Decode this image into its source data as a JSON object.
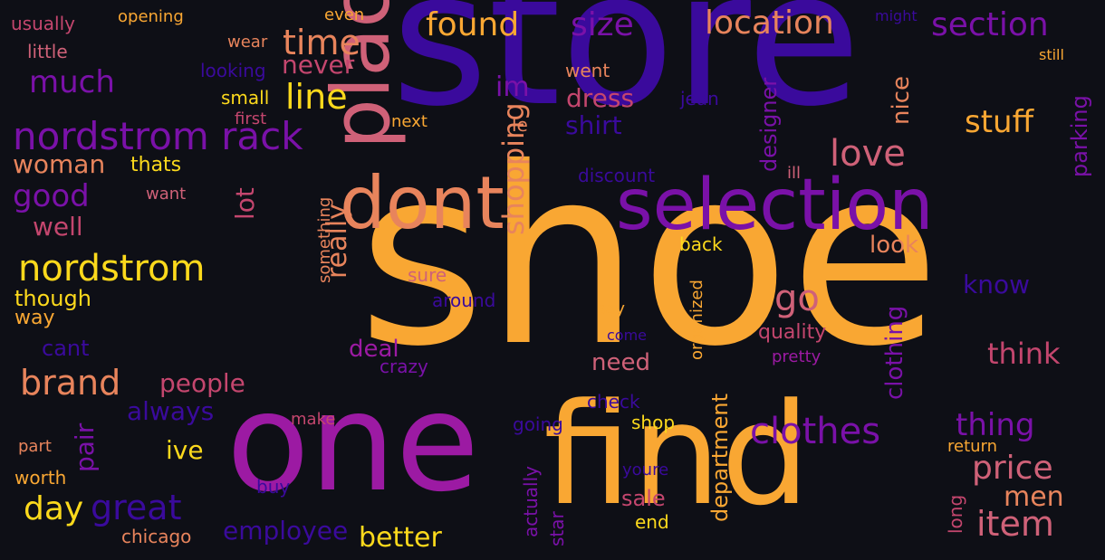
{
  "background": "#0e0f16",
  "palette": [
    "#fcd91c",
    "#f9a733",
    "#e8845c",
    "#cf6178",
    "#c4466e",
    "#9c1aa3",
    "#7a11a8",
    "#3a0a9c"
  ],
  "words": [
    {
      "text": "store",
      "color": "#3a0a9c"
    },
    {
      "text": "shoe",
      "color": "#f9a733"
    },
    {
      "text": "rack",
      "color": "#fcd91c"
    },
    {
      "text": "one",
      "color": "#9c1aa3"
    },
    {
      "text": "find",
      "color": "#f9a733"
    },
    {
      "text": "selection",
      "color": "#7a11a8"
    },
    {
      "text": "dont",
      "color": "#e8845c"
    },
    {
      "text": "place",
      "color": "#cf6178"
    },
    {
      "text": "nordstrom rack",
      "color": "#7a11a8"
    },
    {
      "text": "nordstrom",
      "color": "#fcd91c"
    },
    {
      "text": "clothes",
      "color": "#7a11a8"
    },
    {
      "text": "location",
      "color": "#e8845c"
    },
    {
      "text": "section",
      "color": "#7a11a8"
    },
    {
      "text": "found",
      "color": "#f9a733"
    },
    {
      "text": "size",
      "color": "#7a11a8"
    },
    {
      "text": "time",
      "color": "#e8845c"
    },
    {
      "text": "line",
      "color": "#fcd91c"
    },
    {
      "text": "much",
      "color": "#7a11a8"
    },
    {
      "text": "good",
      "color": "#7a11a8"
    },
    {
      "text": "brand",
      "color": "#e8845c"
    },
    {
      "text": "great",
      "color": "#3a0a9c"
    },
    {
      "text": "day",
      "color": "#fcd91c"
    },
    {
      "text": "love",
      "color": "#cf6178"
    },
    {
      "text": "stuff",
      "color": "#f9a733"
    },
    {
      "text": "go",
      "color": "#cf6178"
    },
    {
      "text": "item",
      "color": "#cf6178"
    },
    {
      "text": "price",
      "color": "#cf6178"
    },
    {
      "text": "thing",
      "color": "#7a11a8"
    },
    {
      "text": "think",
      "color": "#c4466e"
    },
    {
      "text": "men",
      "color": "#e8845c"
    },
    {
      "text": "shopping",
      "color": "#e8845c"
    },
    {
      "text": "really",
      "color": "#e8845c"
    },
    {
      "text": "better",
      "color": "#fcd91c"
    },
    {
      "text": "employee",
      "color": "#3a0a9c"
    },
    {
      "text": "people",
      "color": "#c4466e"
    },
    {
      "text": "always",
      "color": "#3a0a9c"
    },
    {
      "text": "never",
      "color": "#c4466e"
    },
    {
      "text": "im",
      "color": "#7a11a8"
    },
    {
      "text": "dress",
      "color": "#c4466e"
    },
    {
      "text": "shirt",
      "color": "#3a0a9c"
    },
    {
      "text": "woman",
      "color": "#e8845c"
    },
    {
      "text": "well",
      "color": "#c4466e"
    },
    {
      "text": "lot",
      "color": "#c4466e"
    },
    {
      "text": "ive",
      "color": "#fcd91c"
    },
    {
      "text": "pair",
      "color": "#7a11a8"
    },
    {
      "text": "though",
      "color": "#fcd91c"
    },
    {
      "text": "way",
      "color": "#f9a733"
    },
    {
      "text": "cant",
      "color": "#3a0a9c"
    },
    {
      "text": "thats",
      "color": "#fcd91c"
    },
    {
      "text": "want",
      "color": "#cf6178"
    },
    {
      "text": "designer",
      "color": "#7a11a8"
    },
    {
      "text": "nice",
      "color": "#e8845c"
    },
    {
      "text": "parking",
      "color": "#7a11a8"
    },
    {
      "text": "clothing",
      "color": "#7a11a8"
    },
    {
      "text": "department",
      "color": "#f9a733"
    },
    {
      "text": "know",
      "color": "#3a0a9c"
    },
    {
      "text": "look",
      "color": "#e8845c"
    },
    {
      "text": "back",
      "color": "#fcd91c"
    },
    {
      "text": "need",
      "color": "#cf6178"
    },
    {
      "text": "deal",
      "color": "#9c1aa3"
    },
    {
      "text": "sale",
      "color": "#c4466e"
    },
    {
      "text": "quality",
      "color": "#c4466e"
    },
    {
      "text": "long",
      "color": "#c4466e"
    },
    {
      "text": "return",
      "color": "#f9a733"
    },
    {
      "text": "still",
      "color": "#f9a733"
    },
    {
      "text": "might",
      "color": "#3a0a9c"
    },
    {
      "text": "went",
      "color": "#e8845c"
    },
    {
      "text": "jean",
      "color": "#3a0a9c"
    },
    {
      "text": "le",
      "color": "#e8845c"
    },
    {
      "text": "next",
      "color": "#f9a733"
    },
    {
      "text": "first",
      "color": "#c4466e"
    },
    {
      "text": "small",
      "color": "#fcd91c"
    },
    {
      "text": "looking",
      "color": "#3a0a9c"
    },
    {
      "text": "wear",
      "color": "#e8845c"
    },
    {
      "text": "even",
      "color": "#f9a733"
    },
    {
      "text": "opening",
      "color": "#f9a733"
    },
    {
      "text": "usually",
      "color": "#c4466e"
    },
    {
      "text": "little",
      "color": "#cf6178"
    },
    {
      "text": "discount",
      "color": "#3a0a9c"
    },
    {
      "text": "ill",
      "color": "#cf6178"
    },
    {
      "text": "something",
      "color": "#e8845c"
    },
    {
      "text": "sure",
      "color": "#cf6178"
    },
    {
      "text": "around",
      "color": "#3a0a9c"
    },
    {
      "text": "say",
      "color": "#f9a733"
    },
    {
      "text": "crazy",
      "color": "#7a11a8"
    },
    {
      "text": "come",
      "color": "#3a0a9c"
    },
    {
      "text": "pretty",
      "color": "#9c1aa3"
    },
    {
      "text": "organized",
      "color": "#f9a733"
    },
    {
      "text": "check",
      "color": "#3a0a9c"
    },
    {
      "text": "going",
      "color": "#3a0a9c"
    },
    {
      "text": "shop",
      "color": "#fcd91c"
    },
    {
      "text": "youre",
      "color": "#3a0a9c"
    },
    {
      "text": "actually",
      "color": "#7a11a8"
    },
    {
      "text": "star",
      "color": "#7a11a8"
    },
    {
      "text": "end",
      "color": "#fcd91c"
    },
    {
      "text": "make",
      "color": "#c4466e"
    },
    {
      "text": "buy",
      "color": "#3a0a9c"
    },
    {
      "text": "part",
      "color": "#e8845c"
    },
    {
      "text": "worth",
      "color": "#f9a733"
    },
    {
      "text": "chicago",
      "color": "#e8845c"
    }
  ]
}
